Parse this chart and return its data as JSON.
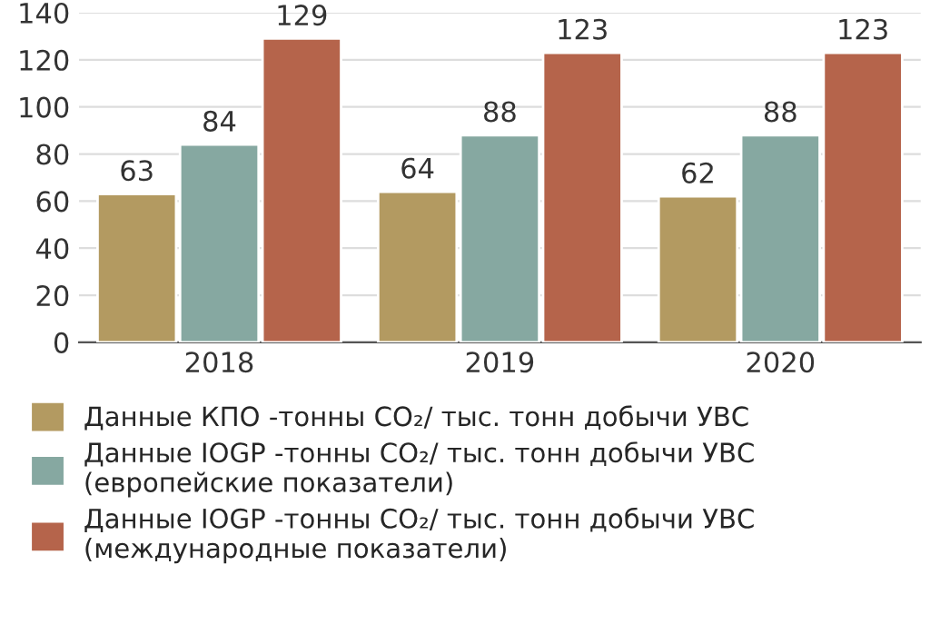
{
  "chart_data": {
    "type": "bar",
    "categories": [
      "2018",
      "2019",
      "2020"
    ],
    "series": [
      {
        "name": "Данные КПО -тонны CO₂/ тыс. тонн добычи УВС",
        "color": "#b39a61",
        "values": [
          63,
          64,
          62
        ]
      },
      {
        "name": "Данные IOGP -тонны CO₂/ тыс. тонн добычи УВС\n(европейские показатели)",
        "color": "#86a8a1",
        "values": [
          84,
          88,
          88
        ]
      },
      {
        "name": "Данные IOGP -тонны CO₂/ тыс. тонн добычи УВС\n(международные показатели)",
        "color": "#b5644b",
        "values": [
          129,
          123,
          123
        ]
      }
    ],
    "ylim": [
      0,
      140
    ],
    "yticks": [
      0,
      20,
      40,
      60,
      80,
      100,
      120,
      140
    ],
    "grid": "y",
    "legend": "bottom",
    "data_labels": true
  }
}
